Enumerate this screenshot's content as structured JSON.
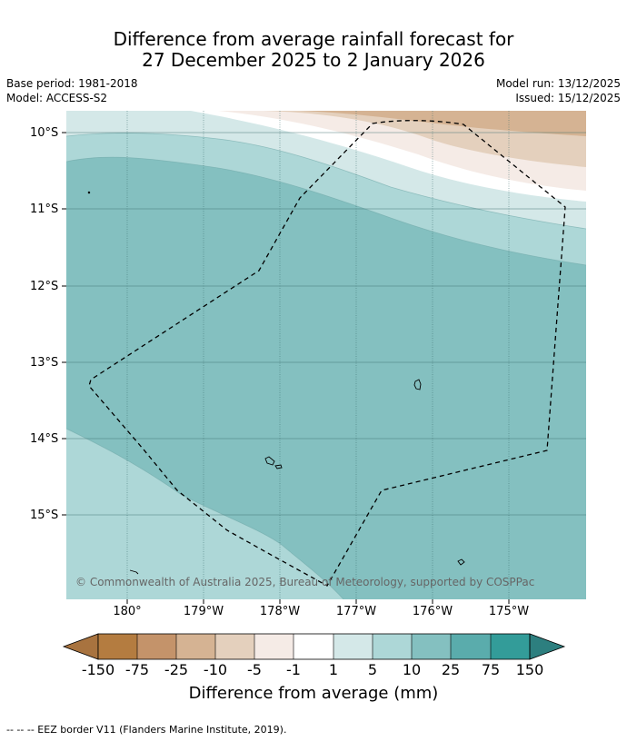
{
  "title": {
    "line1": "Difference from average rainfall forecast for",
    "line2": "27 December 2025 to 2 January 2026"
  },
  "meta": {
    "base_period": "Base period: 1981-2018",
    "model": "Model: ACCESS-S2",
    "model_run": "Model run: 13/12/2025",
    "issued": "Issued: 15/12/2025"
  },
  "map": {
    "latitude_labels": [
      "10°S",
      "11°S",
      "12°S",
      "13°S",
      "14°S",
      "15°S"
    ],
    "longitude_labels": [
      "180°",
      "179°W",
      "178°W",
      "177°W",
      "176°W",
      "175°W"
    ],
    "copyright": "© Commonwealth of Australia 2025, Bureau of Meteorology, supported by COSPPac",
    "colors": {
      "band_25_to_75": "#5aacac",
      "band_10_to_25": "#84c0c0",
      "band_5_to_10": "#add7d7",
      "band_1_to_5": "#d4e8e8",
      "band_minus1_to_1": "#ffffff",
      "band_minus5_to_minus1": "#f5ebe6",
      "band_minus10_to_minus5": "#e4d0bd",
      "band_minus25_to_minus10": "#d5b393",
      "eez_border": "#000000"
    }
  },
  "colorbar": {
    "title": "Difference from average (mm)",
    "labels": [
      "-150",
      "-75",
      "-25",
      "-10",
      "-5",
      "-1",
      "1",
      "5",
      "10",
      "25",
      "75",
      "150"
    ],
    "colors": [
      "#a8733f",
      "#b47c40",
      "#c4936a",
      "#d5b393",
      "#e4d0bd",
      "#f5ebe6",
      "#ffffff",
      "#d4e8e8",
      "#add7d7",
      "#84c0c0",
      "#5aacac",
      "#339c99",
      "#2d7f7f"
    ]
  },
  "footnote": "--  --  -- EEZ border V11 (Flanders Marine Institute, 2019)."
}
